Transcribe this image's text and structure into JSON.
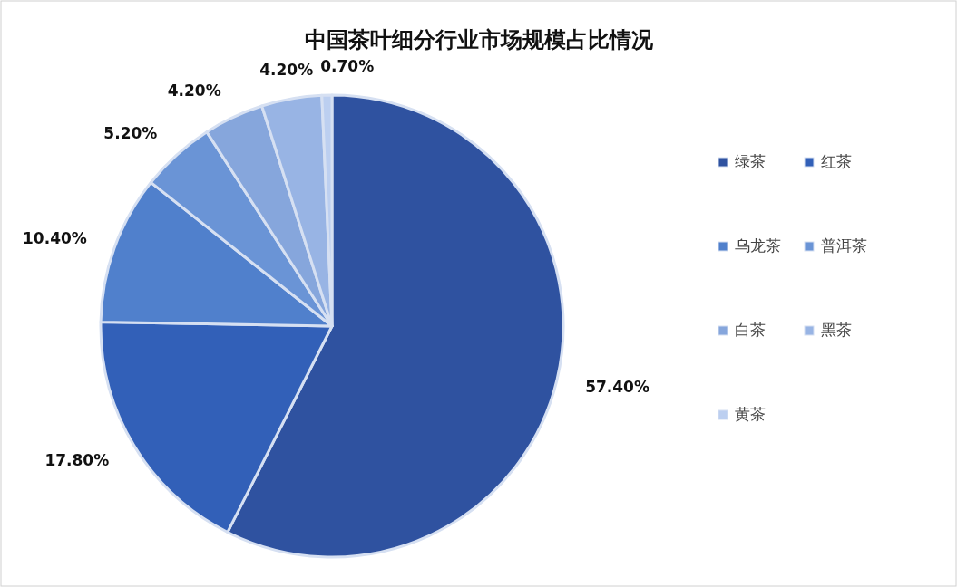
{
  "chart_data": {
    "type": "pie",
    "title": "中国茶叶细分行业市场规模占比情况",
    "categories": [
      "绿茶",
      "红茶",
      "乌龙茶",
      "普洱茶",
      "白茶",
      "黑茶",
      "黄茶"
    ],
    "values": [
      57.4,
      17.8,
      10.4,
      5.2,
      4.2,
      4.2,
      0.7
    ],
    "colors": [
      "#2f52a0",
      "#3260b8",
      "#5080cc",
      "#6a94d6",
      "#86a6dc",
      "#98b4e4",
      "#bccff0"
    ],
    "value_labels": [
      "57.40%",
      "17.80%",
      "10.40%",
      "5.20%",
      "4.20%",
      "4.20%",
      "0.70%"
    ],
    "legend": "right"
  }
}
